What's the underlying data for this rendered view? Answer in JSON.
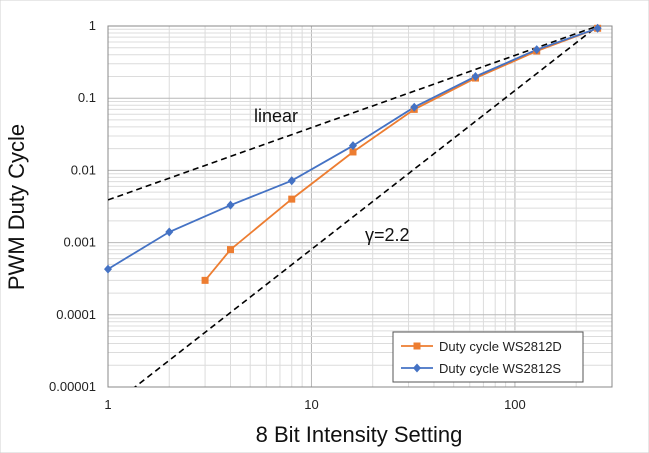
{
  "chart_data": {
    "type": "line",
    "xlabel": "8 Bit Intensity Setting",
    "ylabel": "PWM Duty Cycle",
    "x_scale": "log",
    "y_scale": "log",
    "xlim": [
      1,
      300
    ],
    "ylim": [
      1e-05,
      1
    ],
    "x_ticks": [
      1,
      10,
      100
    ],
    "x_tick_labels": [
      "1",
      "10",
      "100"
    ],
    "y_ticks": [
      1e-05,
      0.0001,
      0.001,
      0.01,
      0.1,
      1
    ],
    "y_tick_labels": [
      "0.00001",
      "0.0001",
      "0.001",
      "0.01",
      "0.1",
      "1"
    ],
    "grid": true,
    "legend_position": "bottom-right",
    "series": [
      {
        "name": "Duty cycle WS2812D",
        "color": "#ED7D31",
        "marker": "square",
        "x": [
          3,
          4,
          8,
          16,
          32,
          64,
          128,
          255
        ],
        "y": [
          0.0003,
          0.0008,
          0.004,
          0.018,
          0.07,
          0.19,
          0.45,
          0.93
        ]
      },
      {
        "name": "Duty cycle WS2812S",
        "color": "#4472C4",
        "marker": "diamond",
        "x": [
          1,
          2,
          4,
          8,
          16,
          32,
          64,
          128,
          255
        ],
        "y": [
          0.00043,
          0.0014,
          0.0033,
          0.0072,
          0.022,
          0.075,
          0.2,
          0.47,
          0.93
        ]
      }
    ],
    "reference_lines": [
      {
        "label": "linear",
        "style": "dashed",
        "color": "#000000",
        "x": [
          1,
          255
        ],
        "y": [
          0.0039,
          1
        ]
      },
      {
        "label": "γ=2.2",
        "style": "dashed",
        "color": "#000000",
        "x": [
          1,
          255
        ],
        "y": [
          5.1e-06,
          1
        ]
      }
    ],
    "annotations": [
      {
        "text": "linear",
        "x": 1,
        "y": 1
      },
      {
        "text": "γ=2.2",
        "x": 1,
        "y": 1
      }
    ]
  }
}
